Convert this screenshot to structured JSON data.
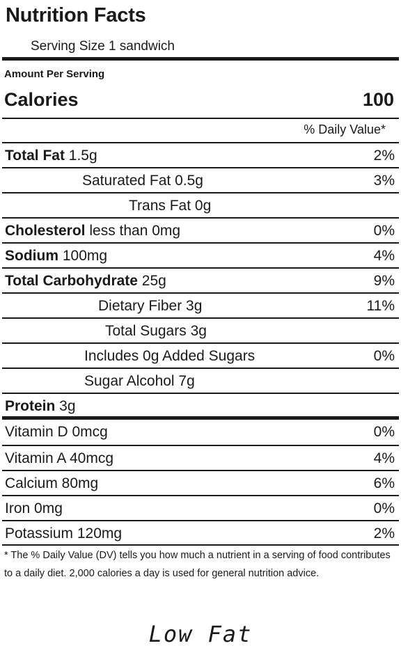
{
  "label": {
    "title": "Nutrition Facts",
    "serving_size": "Serving Size 1 sandwich",
    "amount_per_serving": "Amount Per Serving",
    "calories_label": "Calories",
    "calories_value": "100",
    "daily_value_header": "% Daily Value*",
    "rows": [
      {
        "bold": "Total Fat",
        "rest": " 1.5g",
        "pct": "2%"
      },
      {
        "bold": "",
        "rest": "Saturated Fat 0.5g",
        "pct": "3%"
      },
      {
        "bold": "",
        "rest": "Trans Fat 0g",
        "pct": ""
      },
      {
        "bold": "Cholesterol",
        "rest": " less than 0mg",
        "pct": "0%"
      },
      {
        "bold": "Sodium",
        "rest": " 100mg",
        "pct": "4%"
      },
      {
        "bold": "Total Carbohydrate",
        "rest": " 25g",
        "pct": "9%"
      },
      {
        "bold": "",
        "rest": "Dietary Fiber 3g",
        "pct": "11%"
      },
      {
        "bold": "",
        "rest": "Total Sugars 3g",
        "pct": ""
      },
      {
        "bold": "",
        "rest": "Includes 0g Added Sugars",
        "pct": "0%"
      },
      {
        "bold": "",
        "rest": "Sugar Alcohol 7g",
        "pct": ""
      },
      {
        "bold": "Protein",
        "rest": " 3g",
        "pct": ""
      }
    ],
    "vitamins": [
      {
        "name": "Vitamin D 0mcg",
        "pct": "0%"
      },
      {
        "name": "Vitamin A 40mcg",
        "pct": "4%"
      },
      {
        "name": "Calcium 80mg",
        "pct": "6%"
      },
      {
        "name": "Iron 0mg",
        "pct": "0%"
      },
      {
        "name": "Potassium 120mg",
        "pct": "2%"
      }
    ],
    "footnote": "* The % Daily Value (DV) tells you how much a nutrient in a serving of food contributes to a daily diet. 2,000 calories a day is used for general nutrition advice."
  },
  "claim": "Low Fat"
}
